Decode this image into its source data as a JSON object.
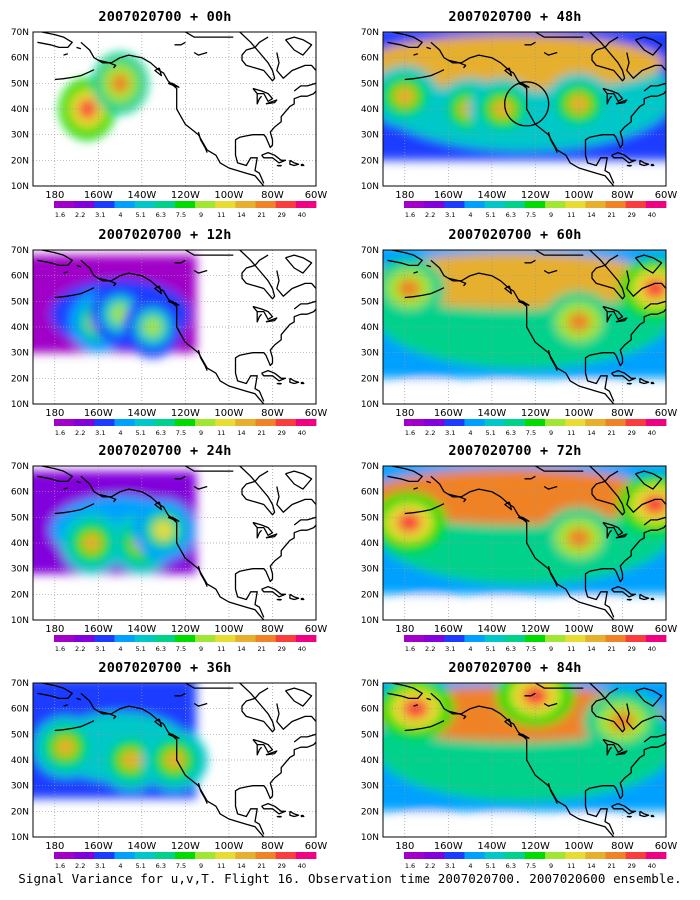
{
  "footer_caption": "Signal Variance for u,v,T. Flight 16. Observation time 2007020700. 2007020600 ensemble.",
  "colorbar": {
    "labels": [
      "1.6",
      "2.2",
      "3.1",
      "4",
      "5.1",
      "6.3",
      "7.5",
      "9",
      "11",
      "14",
      "21",
      "29",
      "40"
    ],
    "colors": [
      "#a000c8",
      "#8200dc",
      "#1e3cff",
      "#00a0ff",
      "#00c8c8",
      "#00d28c",
      "#00dc00",
      "#a0e632",
      "#e6dc32",
      "#e6af2d",
      "#f08228",
      "#fa3c3c",
      "#f00082"
    ]
  },
  "map": {
    "lat_labels": [
      "70N",
      "60N",
      "50N",
      "40N",
      "30N",
      "20N",
      "10N"
    ],
    "lon_labels": [
      "180",
      "160W",
      "140W",
      "120W",
      "100W",
      "80W",
      "60W"
    ]
  },
  "chart_data": [
    {
      "type": "heatmap",
      "title": "2007020700 + 00h",
      "lead_hours": 0,
      "level_scale": [
        "1.6",
        "2.2",
        "3.1",
        "4",
        "5.1",
        "6.3",
        "7.5",
        "9",
        "11",
        "14",
        "21",
        "29",
        "40"
      ],
      "features": [
        {
          "lon": -165,
          "lat": 40,
          "peak": "29"
        },
        {
          "lon": -150,
          "lat": 50,
          "peak": "21"
        }
      ],
      "observation_circle": false
    },
    {
      "type": "heatmap",
      "title": "2007020700 + 12h",
      "lead_hours": 12,
      "level_scale": [
        "1.6",
        "2.2",
        "3.1",
        "4",
        "5.1",
        "6.3",
        "7.5",
        "9",
        "11",
        "14",
        "21",
        "29",
        "40"
      ],
      "features": [
        {
          "lon": -160,
          "lat": 42,
          "peak": "11"
        },
        {
          "lon": -150,
          "lat": 45,
          "peak": "9"
        },
        {
          "lon": -135,
          "lat": 40,
          "peak": "9"
        }
      ],
      "observation_circle": false
    },
    {
      "type": "heatmap",
      "title": "2007020700 + 24h",
      "lead_hours": 24,
      "level_scale": [
        "1.6",
        "2.2",
        "3.1",
        "4",
        "5.1",
        "6.3",
        "7.5",
        "9",
        "11",
        "14",
        "21",
        "29",
        "40"
      ],
      "features": [
        {
          "lon": -163,
          "lat": 40,
          "peak": "14"
        },
        {
          "lon": -140,
          "lat": 40,
          "peak": "14"
        },
        {
          "lon": -130,
          "lat": 45,
          "peak": "11"
        }
      ],
      "observation_circle": false
    },
    {
      "type": "heatmap",
      "title": "2007020700 + 36h",
      "lead_hours": 36,
      "level_scale": [
        "1.6",
        "2.2",
        "3.1",
        "4",
        "5.1",
        "6.3",
        "7.5",
        "9",
        "11",
        "14",
        "21",
        "29",
        "40"
      ],
      "features": [
        {
          "lon": -175,
          "lat": 45,
          "peak": "14"
        },
        {
          "lon": -145,
          "lat": 40,
          "peak": "14"
        },
        {
          "lon": -125,
          "lat": 40,
          "peak": "14"
        }
      ],
      "observation_circle": false
    },
    {
      "type": "heatmap",
      "title": "2007020700 + 48h",
      "lead_hours": 48,
      "level_scale": [
        "1.6",
        "2.2",
        "3.1",
        "4",
        "5.1",
        "6.3",
        "7.5",
        "9",
        "11",
        "14",
        "21",
        "29",
        "40"
      ],
      "features": [
        {
          "lon": -180,
          "lat": 45,
          "peak": "14"
        },
        {
          "lon": -150,
          "lat": 40,
          "peak": "14"
        },
        {
          "lon": -100,
          "lat": 42,
          "peak": "14"
        },
        {
          "lon": -135,
          "lat": 40,
          "peak": "14"
        }
      ],
      "observation_circle": true
    },
    {
      "type": "heatmap",
      "title": "2007020700 + 60h",
      "lead_hours": 60,
      "level_scale": [
        "1.6",
        "2.2",
        "3.1",
        "4",
        "5.1",
        "6.3",
        "7.5",
        "9",
        "11",
        "14",
        "21",
        "29",
        "40"
      ],
      "features": [
        {
          "lon": -178,
          "lat": 55,
          "peak": "21"
        },
        {
          "lon": -100,
          "lat": 42,
          "peak": "21"
        },
        {
          "lon": -65,
          "lat": 55,
          "peak": "29"
        }
      ],
      "observation_circle": false
    },
    {
      "type": "heatmap",
      "title": "2007020700 + 72h",
      "lead_hours": 72,
      "level_scale": [
        "1.6",
        "2.2",
        "3.1",
        "4",
        "5.1",
        "6.3",
        "7.5",
        "9",
        "11",
        "14",
        "21",
        "29",
        "40"
      ],
      "features": [
        {
          "lon": -178,
          "lat": 48,
          "peak": "29"
        },
        {
          "lon": -100,
          "lat": 42,
          "peak": "21"
        },
        {
          "lon": -65,
          "lat": 55,
          "peak": "29"
        }
      ],
      "observation_circle": false
    },
    {
      "type": "heatmap",
      "title": "2007020700 + 84h",
      "lead_hours": 84,
      "level_scale": [
        "1.6",
        "2.2",
        "3.1",
        "4",
        "5.1",
        "6.3",
        "7.5",
        "9",
        "11",
        "14",
        "21",
        "29",
        "40"
      ],
      "features": [
        {
          "lon": -175,
          "lat": 60,
          "peak": "29"
        },
        {
          "lon": -120,
          "lat": 65,
          "peak": "29"
        },
        {
          "lon": -80,
          "lat": 55,
          "peak": "21"
        }
      ],
      "observation_circle": false
    }
  ]
}
